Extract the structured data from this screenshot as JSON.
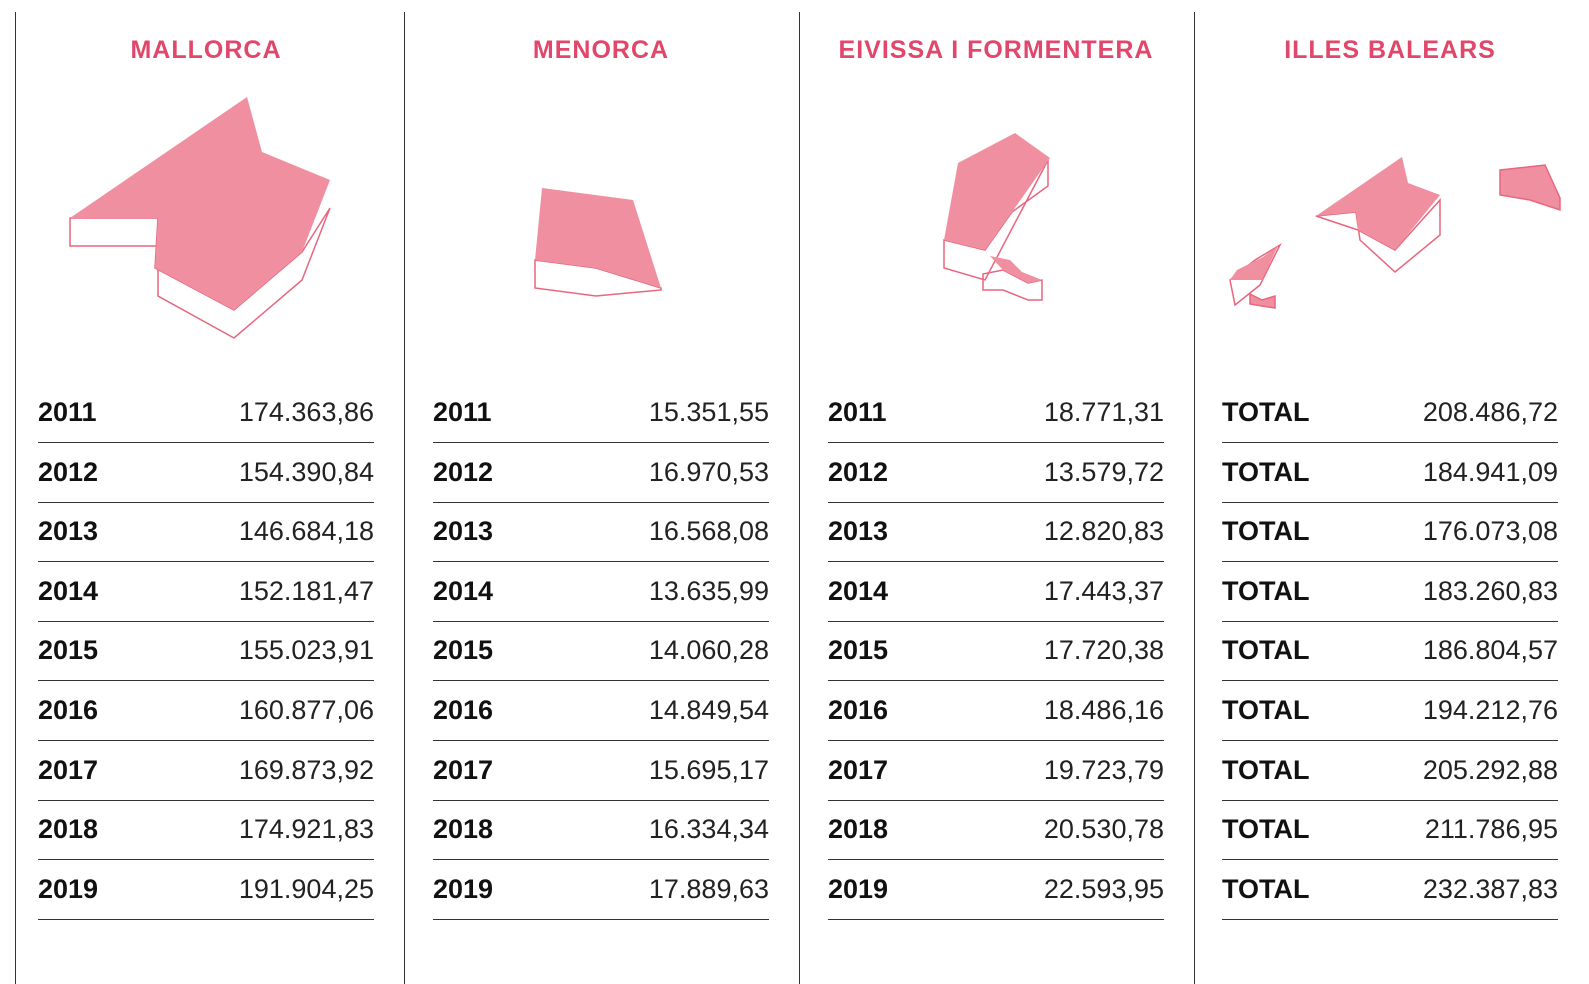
{
  "columns": [
    {
      "title": "MALLORCA",
      "rows": [
        [
          "2011",
          "174.363,86"
        ],
        [
          "2012",
          "154.390,84"
        ],
        [
          "2013",
          "146.684,18"
        ],
        [
          "2014",
          "152.181,47"
        ],
        [
          "2015",
          "155.023,91"
        ],
        [
          "2016",
          "160.877,06"
        ],
        [
          "2017",
          "169.873,92"
        ],
        [
          "2018",
          "174.921,83"
        ],
        [
          "2019",
          "191.904,25"
        ]
      ]
    },
    {
      "title": "MENORCA",
      "rows": [
        [
          "2011",
          "15.351,55"
        ],
        [
          "2012",
          "16.970,53"
        ],
        [
          "2013",
          "16.568,08"
        ],
        [
          "2014",
          "13.635,99"
        ],
        [
          "2015",
          "14.060,28"
        ],
        [
          "2016",
          "14.849,54"
        ],
        [
          "2017",
          "15.695,17"
        ],
        [
          "2018",
          "16.334,34"
        ],
        [
          "2019",
          "17.889,63"
        ]
      ]
    },
    {
      "title": "EIVISSA I FORMENTERA",
      "rows": [
        [
          "2011",
          "18.771,31"
        ],
        [
          "2012",
          "13.579,72"
        ],
        [
          "2013",
          "12.820,83"
        ],
        [
          "2014",
          "17.443,37"
        ],
        [
          "2015",
          "17.720,38"
        ],
        [
          "2016",
          "18.486,16"
        ],
        [
          "2017",
          "19.723,79"
        ],
        [
          "2018",
          "20.530,78"
        ],
        [
          "2019",
          "22.593,95"
        ]
      ]
    },
    {
      "title": "ILLES BALEARS",
      "rows": [
        [
          "TOTAL",
          "208.486,72"
        ],
        [
          "TOTAL",
          "184.941,09"
        ],
        [
          "TOTAL",
          "176.073,08"
        ],
        [
          "TOTAL",
          "183.260,83"
        ],
        [
          "TOTAL",
          "186.804,57"
        ],
        [
          "TOTAL",
          "194.212,76"
        ],
        [
          "TOTAL",
          "205.292,88"
        ],
        [
          "TOTAL",
          "211.786,95"
        ],
        [
          "TOTAL",
          "232.387,83"
        ]
      ]
    }
  ]
}
